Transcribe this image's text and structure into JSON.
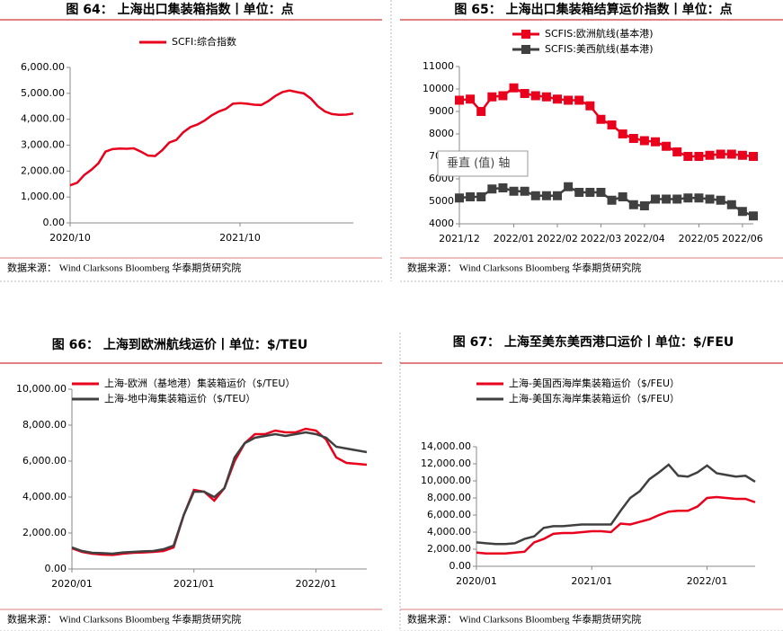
{
  "tooltip": "垂直 (值) 轴",
  "chart_data": [
    {
      "type": "line",
      "title": "图 64：  上海出口集装箱指数丨单位：点",
      "source": "数据来源：  Wind Clarksons Bloomberg 华泰期货研究院",
      "categories": [
        "2020/10",
        null,
        null,
        null,
        null,
        null,
        null,
        null,
        null,
        null,
        null,
        null,
        null,
        null,
        null,
        null,
        null,
        null,
        null,
        null,
        null,
        null,
        null,
        null,
        "2021/10",
        null,
        null,
        null,
        null,
        null,
        null,
        null,
        null,
        null,
        null,
        null,
        null,
        null,
        null,
        null,
        null
      ],
      "series": [
        {
          "name": "SCFI:综合指数",
          "color": "#e8001c",
          "values": [
            1450,
            1550,
            1850,
            2050,
            2300,
            2750,
            2850,
            2870,
            2860,
            2880,
            2750,
            2600,
            2580,
            2800,
            3100,
            3200,
            3500,
            3700,
            3800,
            3950,
            4150,
            4300,
            4400,
            4600,
            4620,
            4600,
            4560,
            4550,
            4700,
            4900,
            5050,
            5110,
            5050,
            5000,
            4800,
            4500,
            4300,
            4200,
            4170,
            4180,
            4220
          ]
        }
      ],
      "ylim": [
        0,
        6000
      ],
      "yticks": [
        {
          "value": 0,
          "label": "0.00"
        },
        {
          "value": 1000,
          "label": "1,000.00"
        },
        {
          "value": 2000,
          "label": "2,000.00"
        },
        {
          "value": 3000,
          "label": "3,000.00"
        },
        {
          "value": 4000,
          "label": "4,000.00"
        },
        {
          "value": 5000,
          "label": "5,000.00"
        },
        {
          "value": 6000,
          "label": "6,000.00"
        }
      ]
    },
    {
      "type": "line",
      "title": "图 65：  上海出口集装箱结算运价指数丨单位：点",
      "source": "数据来源：  Wind Clarksons Bloomberg 华泰期货研究院",
      "marker": "square",
      "categories": [
        "2021/12",
        null,
        null,
        null,
        null,
        "2022/01",
        null,
        null,
        null,
        "2022/02",
        null,
        null,
        null,
        "2022/03",
        null,
        null,
        null,
        "2022/04",
        null,
        null,
        null,
        null,
        "2022/05",
        null,
        null,
        null,
        "2022/06",
        null
      ],
      "series": [
        {
          "name": "SCFIS:欧洲航线(基本港)",
          "color": "#e8001c",
          "values": [
            9500,
            9550,
            9000,
            9650,
            9700,
            10050,
            9800,
            9700,
            9650,
            9550,
            9500,
            9500,
            9250,
            8650,
            8400,
            8000,
            7800,
            7700,
            7650,
            7450,
            7200,
            7000,
            7000,
            7050,
            7100,
            7100,
            7050,
            7000
          ]
        },
        {
          "name": "SCFIS:美西航线(基本港)",
          "color": "#404040",
          "values": [
            5150,
            5200,
            5200,
            5550,
            5600,
            5450,
            5450,
            5250,
            5250,
            5250,
            5650,
            5400,
            5400,
            5400,
            5050,
            5200,
            4850,
            4800,
            5100,
            5100,
            5100,
            5150,
            5150,
            5100,
            5050,
            4850,
            4550,
            4350
          ]
        }
      ],
      "ylim": [
        4000,
        11000
      ],
      "yticks": [
        4000,
        5000,
        6000,
        7000,
        8000,
        9000,
        10000,
        11000
      ]
    },
    {
      "type": "line",
      "title": "图 66：  上海到欧洲航线运价丨单位：$/TEU",
      "source": "数据来源：  Wind Clarksons Bloomberg 华泰期货研究院",
      "categories": [
        "2020/01",
        null,
        null,
        null,
        null,
        null,
        null,
        null,
        null,
        null,
        null,
        null,
        "2021/01",
        null,
        null,
        null,
        null,
        null,
        null,
        null,
        null,
        null,
        null,
        null,
        "2022/01",
        null,
        null,
        null,
        null,
        null
      ],
      "series": [
        {
          "name": "上海-欧洲（基地港）集装箱运价（$/TEU）",
          "color": "#e8001c",
          "values": [
            1150,
            950,
            850,
            800,
            780,
            850,
            900,
            920,
            950,
            1000,
            1200,
            3000,
            4400,
            4300,
            3800,
            4500,
            6000,
            7000,
            7500,
            7500,
            7700,
            7600,
            7600,
            7800,
            7700,
            7200,
            6200,
            5900,
            5850,
            5800
          ]
        },
        {
          "name": "上海-地中海集装箱运价（$/TEU）",
          "color": "#404040",
          "values": [
            1200,
            1000,
            900,
            880,
            850,
            920,
            950,
            980,
            1000,
            1100,
            1300,
            3000,
            4300,
            4300,
            4000,
            4500,
            6200,
            7000,
            7300,
            7400,
            7500,
            7400,
            7500,
            7600,
            7500,
            7300,
            6800,
            6700,
            6600,
            6500
          ]
        }
      ],
      "ylim": [
        0,
        10000
      ],
      "yticks": [
        {
          "value": 0,
          "label": "0.00"
        },
        {
          "value": 2000,
          "label": "2,000.00"
        },
        {
          "value": 4000,
          "label": "4,000.00"
        },
        {
          "value": 6000,
          "label": "6,000.00"
        },
        {
          "value": 8000,
          "label": "8,000.00"
        },
        {
          "value": 10000,
          "label": "10,000.00"
        }
      ]
    },
    {
      "type": "line",
      "title": "图 67：  上海至美东美西港口运价丨单位：$/FEU",
      "source": "数据来源：  Wind Clarksons Bloomberg 华泰期货研究院",
      "categories": [
        "2020/01",
        null,
        null,
        null,
        null,
        null,
        null,
        null,
        null,
        null,
        null,
        null,
        "2021/01",
        null,
        null,
        null,
        null,
        null,
        null,
        null,
        null,
        null,
        null,
        null,
        "2022/01",
        null,
        null,
        null,
        null,
        null
      ],
      "series": [
        {
          "name": "上海-美国西海岸集装箱运价（$/FEU）",
          "color": "#e8001c",
          "values": [
            1600,
            1500,
            1500,
            1500,
            1600,
            1700,
            2800,
            3200,
            3800,
            3900,
            3900,
            4000,
            4100,
            4100,
            4000,
            5000,
            4900,
            5200,
            5500,
            6000,
            6400,
            6500,
            6500,
            7000,
            8000,
            8100,
            8000,
            7900,
            7900,
            7500
          ]
        },
        {
          "name": "上海-美国东海岸集装箱运价（$/FEU）",
          "color": "#404040",
          "values": [
            2800,
            2700,
            2600,
            2600,
            2700,
            3200,
            3500,
            4500,
            4700,
            4700,
            4800,
            4900,
            4900,
            4900,
            4900,
            6500,
            8000,
            8800,
            10200,
            11000,
            11900,
            10600,
            10500,
            11000,
            11800,
            10900,
            10700,
            10500,
            10600,
            9900
          ]
        }
      ],
      "ylim": [
        0,
        14000
      ],
      "yticks": [
        {
          "value": 0,
          "label": "0.00"
        },
        {
          "value": 2000,
          "label": "2,000.00"
        },
        {
          "value": 4000,
          "label": "4,000.00"
        },
        {
          "value": 6000,
          "label": "6,000.00"
        },
        {
          "value": 8000,
          "label": "8,000.00"
        },
        {
          "value": 10000,
          "label": "10,000.00"
        },
        {
          "value": 12000,
          "label": "12,000.00"
        },
        {
          "value": 14000,
          "label": "14,000.00"
        }
      ]
    }
  ]
}
